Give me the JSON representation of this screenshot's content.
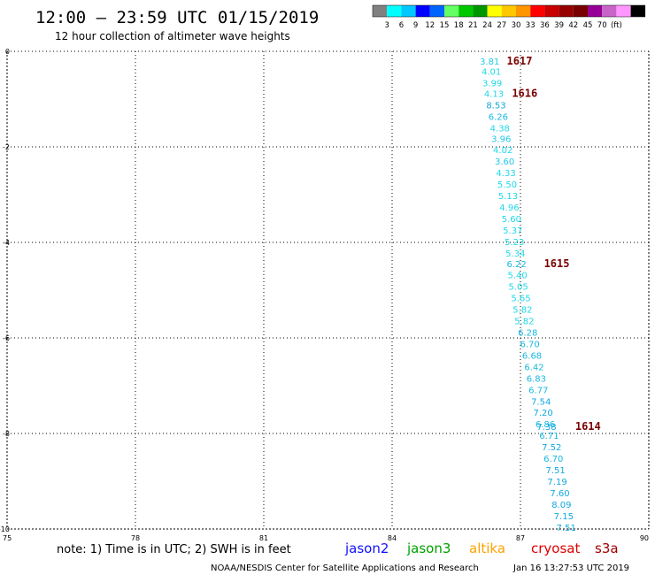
{
  "header": {
    "title": "12:00 – 23:59 UTC 01/15/2019",
    "subtitle": "12 hour collection of altimeter wave heights"
  },
  "color_scale": {
    "swatches": [
      "#808080",
      "#00ffff",
      "#00c8ff",
      "#0000ff",
      "#0064ff",
      "#64ff64",
      "#00c800",
      "#009600",
      "#ffff00",
      "#ffc800",
      "#ff9600",
      "#ff0000",
      "#c80000",
      "#960000",
      "#780000",
      "#960096",
      "#c864c8",
      "#ff96ff",
      "#000000"
    ],
    "labels": [
      "3",
      "6",
      "9",
      "12",
      "15",
      "18",
      "21",
      "24",
      "27",
      "30",
      "33",
      "36",
      "39",
      "42",
      "45",
      "70",
      "(ft)"
    ]
  },
  "chart_data": {
    "type": "scatter",
    "title": "12:00 – 23:59 UTC 01/15/2019",
    "xlim": [
      75,
      90
    ],
    "ylim": [
      -10,
      0
    ],
    "x_ticks": [
      "75",
      "78",
      "81",
      "84",
      "87",
      "90"
    ],
    "y_ticks": [
      "0",
      "-2",
      "-4",
      "-6",
      "-8",
      "-10"
    ],
    "grid": true,
    "points": [
      {
        "x": 86.28,
        "y": -0.2,
        "label": "3.81",
        "color": "#20c8e8"
      },
      {
        "x": 86.32,
        "y": -0.42,
        "label": "4.01",
        "color": "#20d8e8"
      },
      {
        "x": 86.34,
        "y": -0.66,
        "label": "3.99",
        "color": "#20d8e8"
      },
      {
        "x": 86.38,
        "y": -0.88,
        "label": "4.13",
        "color": "#20d8e8"
      },
      {
        "x": 86.43,
        "y": -1.12,
        "label": "8.53",
        "color": "#10a8e0"
      },
      {
        "x": 86.48,
        "y": -1.36,
        "label": "6.26",
        "color": "#18b8e0"
      },
      {
        "x": 86.52,
        "y": -1.6,
        "label": "4.38",
        "color": "#20d8e8"
      },
      {
        "x": 86.55,
        "y": -1.82,
        "label": "3.96",
        "color": "#20c8e8"
      },
      {
        "x": 86.59,
        "y": -2.06,
        "label": "4.02",
        "color": "#20d8e8"
      },
      {
        "x": 86.63,
        "y": -2.3,
        "label": "3.60",
        "color": "#20c8e8"
      },
      {
        "x": 86.66,
        "y": -2.54,
        "label": "4.33",
        "color": "#20d8e8"
      },
      {
        "x": 86.69,
        "y": -2.78,
        "label": "5.50",
        "color": "#20d8e8"
      },
      {
        "x": 86.71,
        "y": -3.02,
        "label": "5.13",
        "color": "#20d8e8"
      },
      {
        "x": 86.74,
        "y": -3.26,
        "label": "4.96",
        "color": "#20d8e8"
      },
      {
        "x": 86.79,
        "y": -3.5,
        "label": "5.60",
        "color": "#20d8e8"
      },
      {
        "x": 86.82,
        "y": -3.74,
        "label": "5.37",
        "color": "#20d8e8"
      },
      {
        "x": 86.86,
        "y": -3.98,
        "label": "5.23",
        "color": "#20d8e8"
      },
      {
        "x": 86.88,
        "y": -4.22,
        "label": "5.34",
        "color": "#20d8e8"
      },
      {
        "x": 86.91,
        "y": -4.44,
        "label": "6.22",
        "color": "#18b8e0"
      },
      {
        "x": 86.93,
        "y": -4.68,
        "label": "5.40",
        "color": "#20d8e8"
      },
      {
        "x": 86.95,
        "y": -4.92,
        "label": "5.05",
        "color": "#20d8e8"
      },
      {
        "x": 87.01,
        "y": -5.16,
        "label": "5.65",
        "color": "#20d8e8"
      },
      {
        "x": 87.05,
        "y": -5.4,
        "label": "5.82",
        "color": "#20d8e8"
      },
      {
        "x": 87.09,
        "y": -5.64,
        "label": "5.82",
        "color": "#20d8e8"
      },
      {
        "x": 87.17,
        "y": -5.88,
        "label": "6.28",
        "color": "#18b8e0"
      },
      {
        "x": 87.22,
        "y": -6.12,
        "label": "6.70",
        "color": "#18b8e0"
      },
      {
        "x": 87.27,
        "y": -6.36,
        "label": "6.68",
        "color": "#18b8e0"
      },
      {
        "x": 87.32,
        "y": -6.6,
        "label": "6.42",
        "color": "#18b8e0"
      },
      {
        "x": 87.37,
        "y": -6.84,
        "label": "6.83",
        "color": "#18b8e0"
      },
      {
        "x": 87.42,
        "y": -7.08,
        "label": "6.77",
        "color": "#18b8e0"
      },
      {
        "x": 87.48,
        "y": -7.32,
        "label": "7.54",
        "color": "#10a8e0"
      },
      {
        "x": 87.53,
        "y": -7.56,
        "label": "7.20",
        "color": "#10a8e0"
      },
      {
        "x": 87.58,
        "y": -7.8,
        "label": "6.86",
        "color": "#18b8e0"
      },
      {
        "x": 87.61,
        "y": -7.85,
        "label": "7.38",
        "color": "#10a8e0"
      },
      {
        "x": 87.67,
        "y": -8.04,
        "label": "6.71",
        "color": "#18b8e0"
      },
      {
        "x": 87.73,
        "y": -8.28,
        "label": "7.52",
        "color": "#10a8e0"
      },
      {
        "x": 87.77,
        "y": -8.52,
        "label": "6.70",
        "color": "#18b8e0"
      },
      {
        "x": 87.82,
        "y": -8.76,
        "label": "7.51",
        "color": "#10a8e0"
      },
      {
        "x": 87.86,
        "y": -9.0,
        "label": "7.19",
        "color": "#10a8e0"
      },
      {
        "x": 87.92,
        "y": -9.24,
        "label": "7.60",
        "color": "#10a8e0"
      },
      {
        "x": 87.96,
        "y": -9.48,
        "label": "8.09",
        "color": "#10a8e0"
      },
      {
        "x": 88.01,
        "y": -9.72,
        "label": "7.15",
        "color": "#10a8e0"
      },
      {
        "x": 88.07,
        "y": -9.96,
        "label": "7.51",
        "color": "#10a8e0"
      }
    ],
    "pass_labels": [
      {
        "x": 86.68,
        "y": -0.2,
        "label": "1617"
      },
      {
        "x": 86.8,
        "y": -0.88,
        "label": "1616"
      },
      {
        "x": 87.55,
        "y": -4.44,
        "label": "1615"
      },
      {
        "x": 88.28,
        "y": -7.85,
        "label": "1614"
      }
    ]
  },
  "footer": {
    "note": "note:  1) Time is in UTC;  2) SWH is in feet",
    "satellites": [
      {
        "name": "jason2",
        "color": "#1010ff"
      },
      {
        "name": "jason3",
        "color": "#00a000"
      },
      {
        "name": "altika",
        "color": "#ffa000"
      },
      {
        "name": "cryosat",
        "color": "#e00000"
      },
      {
        "name": "s3a",
        "color": "#a00000"
      }
    ],
    "credit": "NOAA/NESDIS Center for Satellite Applications and Research",
    "timestamp": "Jan 16 13:27:53 UTC 2019"
  }
}
